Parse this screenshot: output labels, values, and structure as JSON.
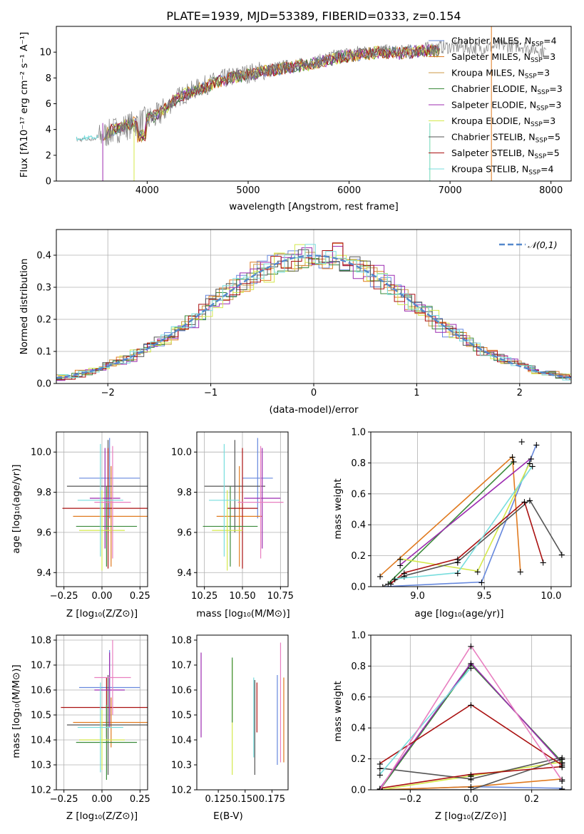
{
  "colors": {
    "Chabrier MILES": "#6688dd",
    "Salpeter MILES": "#e07a1f",
    "Kroupa MILES": "#cc9944",
    "Chabrier ELODIE": "#3a8a3a",
    "Salpeter ELODIE": "#9c2bb0",
    "Kroupa ELODIE": "#d4e84a",
    "Chabrier STELIB": "#555555",
    "Salpeter STELIB": "#aa1111",
    "Kroupa STELIB": "#77dddd",
    "pink": "#e87fc0",
    "reference": "#5588cc",
    "spectrum": "#808080"
  },
  "chart_data": [
    {
      "id": "spectrum",
      "type": "line",
      "title": "PLATE=1939, MJD=53389, FIBERID=0333, z=0.154",
      "xlabel": "wavelength [Angstrom, rest frame]",
      "ylabel": "Flux [fλ10⁻¹⁷ erg cm⁻² s⁻¹ A⁻¹]",
      "xlim": [
        3100,
        8200
      ],
      "ylim": [
        0,
        12
      ],
      "xticks": [
        4000,
        5000,
        6000,
        7000,
        8000
      ],
      "yticks": [
        0,
        2,
        4,
        6,
        8,
        10
      ],
      "grid": false,
      "legend_position": "top-right",
      "legend": [
        "Chabrier MILES, N_SSP=4",
        "Salpeter MILES, N_SSP=3",
        "Kroupa MILES, N_SSP=3",
        "Chabrier ELODIE, N_SSP=3",
        "Salpeter ELODIE, N_SSP=3",
        "Kroupa ELODIE, N_SSP=3",
        "Chabrier STELIB, N_SSP=5",
        "Salpeter STELIB, N_SSP=5",
        "Kroupa STELIB, N_SSP=4"
      ],
      "series": [
        {
          "name": "data",
          "color": "#808080",
          "x": [
            3300,
            3500,
            3700,
            3900,
            4100,
            4300,
            4500,
            4700,
            4900,
            5100,
            5300,
            5500,
            5700,
            5900,
            6100,
            6300,
            6500,
            6700,
            6900,
            7100,
            7300,
            7500,
            7700,
            7900
          ],
          "y": [
            3.2,
            3.3,
            4.0,
            4.5,
            5.0,
            6.5,
            7.2,
            7.8,
            8.2,
            8.5,
            8.8,
            9.0,
            9.3,
            9.8,
            10.0,
            10.1,
            10.0,
            10.2,
            10.4,
            10.4,
            10.3,
            10.5,
            10.5,
            10.1
          ]
        },
        {
          "name": "model",
          "color": "#77dddd",
          "x": [
            3300,
            3500,
            3700,
            3900,
            4100,
            4300,
            4500,
            4700,
            4900,
            5100,
            5300,
            5500,
            5700,
            5900,
            6100,
            6300,
            6500,
            6700
          ],
          "y": [
            3.3,
            3.4,
            4.1,
            4.6,
            5.1,
            6.5,
            7.1,
            7.7,
            8.1,
            8.4,
            8.7,
            8.9,
            9.2,
            9.6,
            9.8,
            10.0,
            9.9,
            10.1
          ]
        }
      ]
    },
    {
      "id": "residuals",
      "type": "line",
      "xlabel": "(data-model)/error",
      "ylabel": "Normed distribution",
      "xlim": [
        -2.5,
        2.5
      ],
      "ylim": [
        0,
        0.48
      ],
      "xticks": [
        -2,
        -1,
        0,
        1,
        2
      ],
      "yticks": [
        0.0,
        0.1,
        0.2,
        0.3,
        0.4
      ],
      "grid": true,
      "legend_position": "top-right",
      "legend": [
        "𝒩(0,1)"
      ],
      "reference": {
        "name": "𝒩(0,1)",
        "mean": 0,
        "sigma": 1
      }
    },
    {
      "id": "age-vs-Z",
      "type": "scatter",
      "xlabel": "Z [log₁₀(Z/Z⊙)]",
      "ylabel": "age  [log₁₀(age/yr)]",
      "xlim": [
        -0.3,
        0.3
      ],
      "ylim": [
        9.33,
        10.1
      ],
      "xticks": [
        -0.25,
        0.0,
        0.25
      ],
      "yticks": [
        9.4,
        9.6,
        9.8,
        10.0
      ],
      "grid": true,
      "points": [
        {
          "x": 0.05,
          "y": 9.87,
          "xerr": 0.2,
          "yerr": 0.2
        },
        {
          "x": 0.06,
          "y": 9.68,
          "xerr": 0.25,
          "yerr": 0.25
        },
        {
          "x": 0.04,
          "y": 9.83,
          "xerr": 0.27,
          "yerr": 0.23
        },
        {
          "x": 0.04,
          "y": 9.72,
          "xerr": 0.3,
          "yerr": 0.3
        },
        {
          "x": 0.03,
          "y": 9.63,
          "xerr": 0.2,
          "yerr": 0.2
        },
        {
          "x": 0.02,
          "y": 9.77,
          "xerr": 0.1,
          "yerr": 0.25
        },
        {
          "x": 0.0,
          "y": 9.61,
          "xerr": 0.15,
          "yerr": 0.2
        },
        {
          "x": 0.07,
          "y": 9.75,
          "xerr": 0.12,
          "yerr": 0.28
        },
        {
          "x": -0.01,
          "y": 9.76,
          "xerr": 0.15,
          "yerr": 0.28
        }
      ]
    },
    {
      "id": "age-vs-mass",
      "type": "scatter",
      "xlabel": "mass [log₁₀(M/M⊙)]",
      "xlim": [
        10.2,
        10.8
      ],
      "ylim": [
        9.33,
        10.1
      ],
      "xticks": [
        10.25,
        10.5,
        10.75
      ],
      "yticks": [
        9.4,
        9.6,
        9.8,
        10.0
      ],
      "grid": true,
      "points": [
        {
          "x": 10.6,
          "y": 9.87,
          "xerr": 0.1,
          "yerr": 0.2
        },
        {
          "x": 10.48,
          "y": 9.68,
          "xerr": 0.15,
          "yerr": 0.25
        },
        {
          "x": 10.45,
          "y": 9.83,
          "xerr": 0.2,
          "yerr": 0.23
        },
        {
          "x": 10.5,
          "y": 9.72,
          "xerr": 0.1,
          "yerr": 0.3
        },
        {
          "x": 10.42,
          "y": 9.63,
          "xerr": 0.18,
          "yerr": 0.2
        },
        {
          "x": 10.63,
          "y": 9.77,
          "xerr": 0.12,
          "yerr": 0.25
        },
        {
          "x": 10.4,
          "y": 9.61,
          "xerr": 0.1,
          "yerr": 0.2
        },
        {
          "x": 10.62,
          "y": 9.75,
          "xerr": 0.15,
          "yerr": 0.28
        },
        {
          "x": 10.38,
          "y": 9.76,
          "xerr": 0.1,
          "yerr": 0.28
        }
      ]
    },
    {
      "id": "weight-vs-age",
      "type": "line",
      "xlabel": "age  [log₁₀(age/yr)]",
      "ylabel": "mass weight",
      "xlim": [
        8.65,
        10.15
      ],
      "ylim": [
        0,
        1
      ],
      "xticks": [
        9.0,
        9.5,
        10.0
      ],
      "yticks": [
        0.0,
        0.2,
        0.4,
        0.6,
        0.8,
        1.0
      ],
      "grid": true,
      "series": [
        {
          "color": "#6688dd",
          "x": [
            8.74,
            9.48,
            9.89
          ],
          "y": [
            0.0,
            0.03,
            0.92
          ]
        },
        {
          "color": "#e07a1f",
          "x": [
            8.72,
            9.71,
            9.77
          ],
          "y": [
            0.07,
            0.84,
            0.1
          ]
        },
        {
          "color": "#3a8a3a",
          "x": [
            8.78,
            9.72
          ],
          "y": [
            0.02,
            0.81
          ]
        },
        {
          "color": "#9c2bb0",
          "x": [
            8.87,
            9.85
          ],
          "y": [
            0.14,
            0.83
          ]
        },
        {
          "color": "#d4e84a",
          "x": [
            8.87,
            9.45,
            9.84
          ],
          "y": [
            0.18,
            0.1,
            0.8
          ]
        },
        {
          "color": "#555555",
          "x": [
            8.74,
            8.9,
            9.3,
            9.84,
            10.08
          ],
          "y": [
            0.0,
            0.07,
            0.16,
            0.56,
            0.21
          ]
        },
        {
          "color": "#aa1111",
          "x": [
            8.8,
            8.9,
            9.3,
            9.8,
            9.94
          ],
          "y": [
            0.02,
            0.09,
            0.18,
            0.55,
            0.16
          ]
        },
        {
          "color": "#77dddd",
          "x": [
            8.83,
            9.3,
            9.86
          ],
          "y": [
            0.05,
            0.09,
            0.78
          ]
        },
        {
          "color": "#e87fc0",
          "x": [
            9.78
          ],
          "y": [
            0.94
          ]
        }
      ]
    },
    {
      "id": "mass-vs-Z",
      "type": "scatter",
      "xlabel": "Z [log₁₀(Z/Z⊙)]",
      "ylabel": "mass [log₁₀(M/M⊙)]",
      "xlim": [
        -0.3,
        0.3
      ],
      "ylim": [
        10.2,
        10.82
      ],
      "xticks": [
        -0.25,
        0.0,
        0.25
      ],
      "yticks": [
        10.2,
        10.3,
        10.4,
        10.5,
        10.6,
        10.7,
        10.8
      ],
      "grid": true,
      "points": [
        {
          "x": 0.05,
          "y": 10.61,
          "xerr": 0.2,
          "yerr": 0.15
        },
        {
          "x": 0.06,
          "y": 10.47,
          "xerr": 0.25,
          "yerr": 0.1
        },
        {
          "x": 0.04,
          "y": 10.46,
          "xerr": 0.27,
          "yerr": 0.2
        },
        {
          "x": 0.03,
          "y": 10.53,
          "xerr": 0.3,
          "yerr": 0.12
        },
        {
          "x": 0.03,
          "y": 10.39,
          "xerr": 0.2,
          "yerr": 0.15
        },
        {
          "x": 0.05,
          "y": 10.6,
          "xerr": 0.1,
          "yerr": 0.15
        },
        {
          "x": 0.0,
          "y": 10.4,
          "xerr": 0.15,
          "yerr": 0.12
        },
        {
          "x": 0.07,
          "y": 10.65,
          "xerr": 0.12,
          "yerr": 0.15
        },
        {
          "x": -0.01,
          "y": 10.45,
          "xerr": 0.15,
          "yerr": 0.18
        }
      ]
    },
    {
      "id": "mass-vs-EBV",
      "type": "scatter",
      "xlabel": "E(B-V)",
      "xlim": [
        0.105,
        0.19
      ],
      "ylim": [
        10.2,
        10.82
      ],
      "xticks": [
        0.125,
        0.15,
        0.175
      ],
      "yticks": [
        10.2,
        10.3,
        10.4,
        10.5,
        10.6,
        10.7,
        10.8
      ],
      "grid": false,
      "points": [
        {
          "x": 0.109,
          "y": 10.58,
          "xerr": 0,
          "yerr": 0.17,
          "color": "#9c2bb0"
        },
        {
          "x": 0.138,
          "y": 10.49,
          "xerr": 0,
          "yerr": 0.23,
          "color": "#d4e84a"
        },
        {
          "x": 0.138,
          "y": 10.6,
          "xerr": 0,
          "yerr": 0.13,
          "color": "#3a8a3a"
        },
        {
          "x": 0.159,
          "y": 10.45,
          "xerr": 0,
          "yerr": 0.19,
          "color": "#555555"
        },
        {
          "x": 0.161,
          "y": 10.53,
          "xerr": 0,
          "yerr": 0.1,
          "color": "#aa1111"
        },
        {
          "x": 0.158,
          "y": 10.49,
          "xerr": 0,
          "yerr": 0.16,
          "color": "#77dddd"
        },
        {
          "x": 0.18,
          "y": 10.48,
          "xerr": 0,
          "yerr": 0.18,
          "color": "#6688dd"
        },
        {
          "x": 0.183,
          "y": 10.55,
          "xerr": 0,
          "yerr": 0.24,
          "color": "#e87fc0"
        },
        {
          "x": 0.186,
          "y": 10.48,
          "xerr": 0,
          "yerr": 0.17,
          "color": "#e07a1f"
        }
      ]
    },
    {
      "id": "weight-vs-Z",
      "type": "line",
      "xlabel": "Z [log₁₀(Z/Z⊙)]",
      "ylabel": "mass weight",
      "xlim": [
        -0.33,
        0.33
      ],
      "ylim": [
        0,
        1
      ],
      "xticks": [
        -0.2,
        0.0,
        0.2
      ],
      "yticks": [
        0.0,
        0.2,
        0.4,
        0.6,
        0.8,
        1.0
      ],
      "grid": true,
      "series": [
        {
          "color": "#6688dd",
          "x": [
            -0.3,
            0.0,
            0.3
          ],
          "y": [
            0.0,
            0.02,
            0.01
          ]
        },
        {
          "color": "#e07a1f",
          "x": [
            -0.3,
            0.0,
            0.3
          ],
          "y": [
            0.0,
            0.02,
            0.07
          ]
        },
        {
          "color": "#3a8a3a",
          "x": [
            -0.3,
            0.0,
            0.3
          ],
          "y": [
            0.0,
            0.81,
            0.18
          ]
        },
        {
          "color": "#9c2bb0",
          "x": [
            -0.3,
            0.0,
            0.3
          ],
          "y": [
            0.01,
            0.82,
            0.17
          ]
        },
        {
          "color": "#d4e84a",
          "x": [
            -0.3,
            0.0,
            0.3
          ],
          "y": [
            0.0,
            0.09,
            0.18
          ]
        },
        {
          "color": "#555555",
          "x": [
            -0.3,
            0.0,
            0.3
          ],
          "y": [
            0.14,
            0.07,
            0.21
          ]
        },
        {
          "color": "#555555",
          "x": [
            -0.3,
            0.0,
            0.3
          ],
          "y": [
            0.0,
            0.0,
            0.2
          ]
        },
        {
          "color": "#aa1111",
          "x": [
            -0.3,
            0.0,
            0.3
          ],
          "y": [
            0.17,
            0.55,
            0.16
          ]
        },
        {
          "color": "#aa1111",
          "x": [
            -0.3,
            0.0,
            0.3
          ],
          "y": [
            0.01,
            0.1,
            0.15
          ]
        },
        {
          "color": "#77dddd",
          "x": [
            -0.3,
            0.0
          ],
          "y": [
            0.1,
            0.79
          ]
        },
        {
          "color": "#e87fc0",
          "x": [
            -0.3,
            0.0,
            0.3
          ],
          "y": [
            0.0,
            0.93,
            0.06
          ]
        }
      ]
    }
  ]
}
